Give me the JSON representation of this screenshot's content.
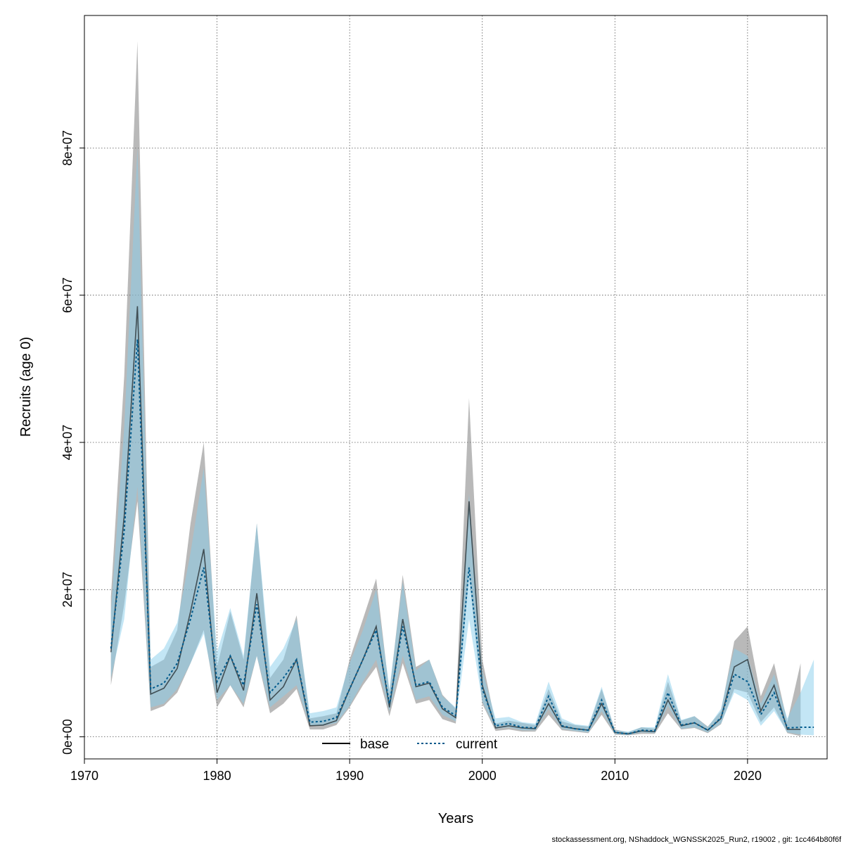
{
  "chart_data": {
    "type": "line",
    "xlabel": "Years",
    "ylabel": "Recruits (age 0)",
    "xlim": [
      1970,
      2026
    ],
    "ylim": [
      -3000000,
      98000000
    ],
    "x_ticks": [
      1970,
      1980,
      1990,
      2000,
      2010,
      2020
    ],
    "y_ticks": [
      0,
      20000000,
      40000000,
      60000000,
      80000000
    ],
    "y_tick_labels": [
      "0e+00",
      "2e+07",
      "4e+07",
      "6e+07",
      "8e+07"
    ],
    "grid": true,
    "legend_position": "bottom-center",
    "footer": "stockassessment.org, NShaddock_WGNSSK2025_Run2, r19002 , git: 1cc464b80f6f",
    "colors": {
      "base_line": "#000000",
      "base_band": "#808080",
      "current_line": "#005a8c",
      "current_band": "#87ceeb"
    },
    "series": [
      {
        "name": "base",
        "style": "solid",
        "x": [
          1972,
          1973,
          1974,
          1975,
          1976,
          1977,
          1978,
          1979,
          1980,
          1981,
          1982,
          1983,
          1984,
          1985,
          1986,
          1987,
          1988,
          1989,
          1990,
          1991,
          1992,
          1993,
          1994,
          1995,
          1996,
          1997,
          1998,
          1999,
          2000,
          2001,
          2002,
          2003,
          2004,
          2005,
          2006,
          2007,
          2008,
          2009,
          2010,
          2011,
          2012,
          2013,
          2014,
          2015,
          2016,
          2017,
          2018,
          2019,
          2020,
          2021,
          2022,
          2023,
          2024
        ],
        "y": [
          11500000,
          30000000,
          58500000,
          5800000,
          6600000,
          9300000,
          17000000,
          25500000,
          6000000,
          11000000,
          6300000,
          19500000,
          5000000,
          6800000,
          10500000,
          1500000,
          1600000,
          2200000,
          6500000,
          10500000,
          15000000,
          4000000,
          16000000,
          6800000,
          7300000,
          3800000,
          2600000,
          32000000,
          7000000,
          1200000,
          1500000,
          1200000,
          1100000,
          4500000,
          1400000,
          1100000,
          900000,
          4500000,
          600000,
          400000,
          800000,
          700000,
          5000000,
          1500000,
          1900000,
          900000,
          2500000,
          9500000,
          10500000,
          3500000,
          7000000,
          1000000,
          1000000
        ],
        "lower": [
          7000000,
          18000000,
          32000000,
          3500000,
          4200000,
          6000000,
          10000000,
          14500000,
          4000000,
          7000000,
          4000000,
          11000000,
          3200000,
          4500000,
          6500000,
          1000000,
          1000000,
          1600000,
          4000000,
          7000000,
          9500000,
          2800000,
          10000000,
          4500000,
          5000000,
          2400000,
          1800000,
          22000000,
          4500000,
          800000,
          1000000,
          700000,
          700000,
          3000000,
          900000,
          700000,
          500000,
          3000000,
          300000,
          200000,
          400000,
          400000,
          3200000,
          1000000,
          1200000,
          500000,
          1700000,
          6500000,
          6000000,
          2000000,
          4000000,
          500000,
          100000
        ],
        "upper": [
          19000000,
          49000000,
          94500000,
          9500000,
          10500000,
          14500000,
          29000000,
          40000000,
          9500000,
          17000000,
          10500000,
          29000000,
          8000000,
          10500000,
          16500000,
          2500000,
          2800000,
          3200000,
          10500000,
          16000000,
          21500000,
          6000000,
          22000000,
          9500000,
          10500000,
          5700000,
          3800000,
          46000000,
          10500000,
          1800000,
          2200000,
          1900000,
          1600000,
          6500000,
          2100000,
          1600000,
          1400000,
          6500000,
          1000000,
          600000,
          1300000,
          1100000,
          7500000,
          2200000,
          2800000,
          1400000,
          3500000,
          13000000,
          15000000,
          5500000,
          10000000,
          2000000,
          10000000
        ]
      },
      {
        "name": "current",
        "style": "dotted",
        "x": [
          1972,
          1973,
          1974,
          1975,
          1976,
          1977,
          1978,
          1979,
          1980,
          1981,
          1982,
          1983,
          1984,
          1985,
          1986,
          1987,
          1988,
          1989,
          1990,
          1991,
          1992,
          1993,
          1994,
          1995,
          1996,
          1997,
          1998,
          1999,
          2000,
          2001,
          2002,
          2003,
          2004,
          2005,
          2006,
          2007,
          2008,
          2009,
          2010,
          2011,
          2012,
          2013,
          2014,
          2015,
          2016,
          2017,
          2018,
          2019,
          2020,
          2021,
          2022,
          2023,
          2024,
          2025
        ],
        "y": [
          12000000,
          28000000,
          54000000,
          6500000,
          7300000,
          10000000,
          16000000,
          23000000,
          7500000,
          11000000,
          7000000,
          18000000,
          6000000,
          8000000,
          10500000,
          2000000,
          2100000,
          2600000,
          6500000,
          10500000,
          14500000,
          4500000,
          15000000,
          7000000,
          7500000,
          4000000,
          2900000,
          23000000,
          6500000,
          1500000,
          1800000,
          1300000,
          1200000,
          5500000,
          1500000,
          1100000,
          900000,
          5000000,
          600000,
          400000,
          900000,
          800000,
          6000000,
          1600000,
          1900000,
          900000,
          2600000,
          8500000,
          7500000,
          3000000,
          6000000,
          1200000,
          1300000,
          1300000
        ],
        "lower": [
          8000000,
          16000000,
          34000000,
          4000000,
          4500000,
          6500000,
          10000000,
          14000000,
          5000000,
          7000000,
          4500000,
          11000000,
          4000000,
          5500000,
          7000000,
          1500000,
          1500000,
          1900000,
          4200000,
          7500000,
          10500000,
          3500000,
          11000000,
          5000000,
          5500000,
          3000000,
          2100000,
          16000000,
          4800000,
          1100000,
          1300000,
          900000,
          900000,
          3800000,
          1100000,
          800000,
          600000,
          3500000,
          400000,
          250000,
          600000,
          500000,
          4200000,
          1100000,
          1300000,
          600000,
          1800000,
          6000000,
          5000000,
          1500000,
          3500000,
          600000,
          300000,
          200000
        ],
        "upper": [
          17000000,
          42000000,
          80000000,
          10500000,
          12000000,
          15500000,
          25000000,
          36500000,
          11500000,
          17500000,
          11000000,
          29000000,
          9500000,
          12000000,
          16000000,
          3200000,
          3500000,
          4000000,
          10000000,
          14500000,
          20000000,
          6500000,
          21000000,
          9000000,
          10500000,
          5500000,
          4000000,
          33000000,
          9000000,
          2500000,
          2700000,
          2000000,
          1800000,
          7500000,
          2500000,
          1700000,
          1500000,
          6800000,
          900000,
          700000,
          1300000,
          1300000,
          8500000,
          2300000,
          2800000,
          1300000,
          3800000,
          12000000,
          11000000,
          4500000,
          8500000,
          2500000,
          6000000,
          10500000
        ]
      }
    ]
  }
}
